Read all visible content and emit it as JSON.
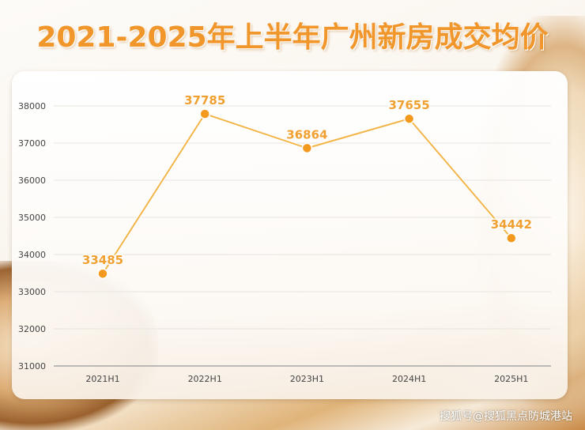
{
  "chart_data": {
    "type": "line",
    "title": "2021-2025年上半年广州新房成交均价",
    "xlabel": "",
    "ylabel": "",
    "categories": [
      "2021H1",
      "2022H1",
      "2023H1",
      "2024H1",
      "2025H1"
    ],
    "series": [
      {
        "name": "成交均价",
        "values": [
          33485,
          37785,
          36864,
          37655,
          34442
        ]
      }
    ],
    "ylim": [
      31000,
      38000
    ],
    "yticks": [
      31000,
      32000,
      33000,
      34000,
      35000,
      36000,
      37000,
      38000
    ],
    "grid": true,
    "colors": {
      "line": "#f2b54a",
      "marker": "#f39a1e",
      "label": "#f0a030"
    }
  },
  "watermark": "搜狐号@搜狐黑点防城港站"
}
